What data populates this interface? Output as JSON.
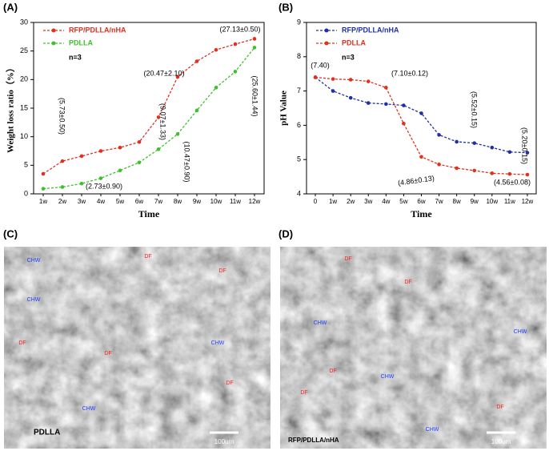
{
  "chart_data": [
    {
      "type": "line",
      "panel": "(A)",
      "xlabel": "Time",
      "ylabel": "Weight loss ratio（%）",
      "note": "n=3",
      "categories": [
        "1w",
        "2w",
        "3w",
        "4w",
        "5w",
        "6w",
        "7w",
        "8w",
        "9w",
        "10w",
        "11w",
        "12w"
      ],
      "series": [
        {
          "name": "RFP/PDLLA/nHA",
          "color": "#e03020",
          "values": [
            3.5,
            5.73,
            6.6,
            7.5,
            8.1,
            9.07,
            13.4,
            20.47,
            23.2,
            25.2,
            26.2,
            27.13
          ]
        },
        {
          "name": "PDLLA",
          "color": "#40c030",
          "values": [
            0.9,
            1.2,
            1.8,
            2.73,
            4.1,
            5.5,
            7.8,
            10.47,
            14.6,
            18.6,
            21.4,
            25.6
          ]
        }
      ],
      "ylim": [
        0,
        30
      ],
      "yticks": [
        0,
        5,
        10,
        15,
        20,
        25,
        30
      ],
      "annotations": [
        "(5.73±0.50)",
        "(9.07±1.33)",
        "(20.47±2.10)",
        "(27.13±0.50)",
        "(2.73±0.90)",
        "(10.47±0.90)",
        "(25.60±1.44)"
      ]
    },
    {
      "type": "line",
      "panel": "(B)",
      "xlabel": "Time",
      "ylabel": "pH Value",
      "note": "n=3",
      "categories": [
        "0",
        "1w",
        "2w",
        "3w",
        "4w",
        "5w",
        "6w",
        "7w",
        "8w",
        "9w",
        "10w",
        "11w",
        "12w"
      ],
      "series": [
        {
          "name": "RFP/PDLLA/nHA",
          "color": "#2030a0",
          "values": [
            7.4,
            7.0,
            6.8,
            6.65,
            6.62,
            6.58,
            6.35,
            5.72,
            5.52,
            5.48,
            5.35,
            5.22,
            5.2
          ]
        },
        {
          "name": "PDLLA",
          "color": "#e03020",
          "values": [
            7.4,
            7.35,
            7.33,
            7.28,
            7.1,
            6.05,
            5.08,
            4.86,
            4.75,
            4.68,
            4.6,
            4.58,
            4.56
          ]
        }
      ],
      "ylim": [
        4,
        9
      ],
      "yticks": [
        4,
        5,
        6,
        7,
        8,
        9
      ],
      "annotations": [
        "(7.40)",
        "(7.10±0.12)",
        "(5.52±0.15)",
        "(4.86±0.13)",
        "(5.20±0.15)",
        "(4.56±0.08)"
      ]
    }
  ],
  "images": [
    {
      "panel": "(C)",
      "caption": "PDLLA",
      "scale": "100um",
      "labels": [
        "CHW",
        "DF",
        "DF",
        "CHW",
        "DF",
        "DF",
        "CHW",
        "CHW",
        "DF"
      ]
    },
    {
      "panel": "(D)",
      "caption": "RFP/PDLLA/nHA",
      "scale": "100um",
      "labels": [
        "DF",
        "DF",
        "CHW",
        "CHW",
        "DF",
        "CHW",
        "DF",
        "DF",
        "CHW"
      ]
    }
  ]
}
